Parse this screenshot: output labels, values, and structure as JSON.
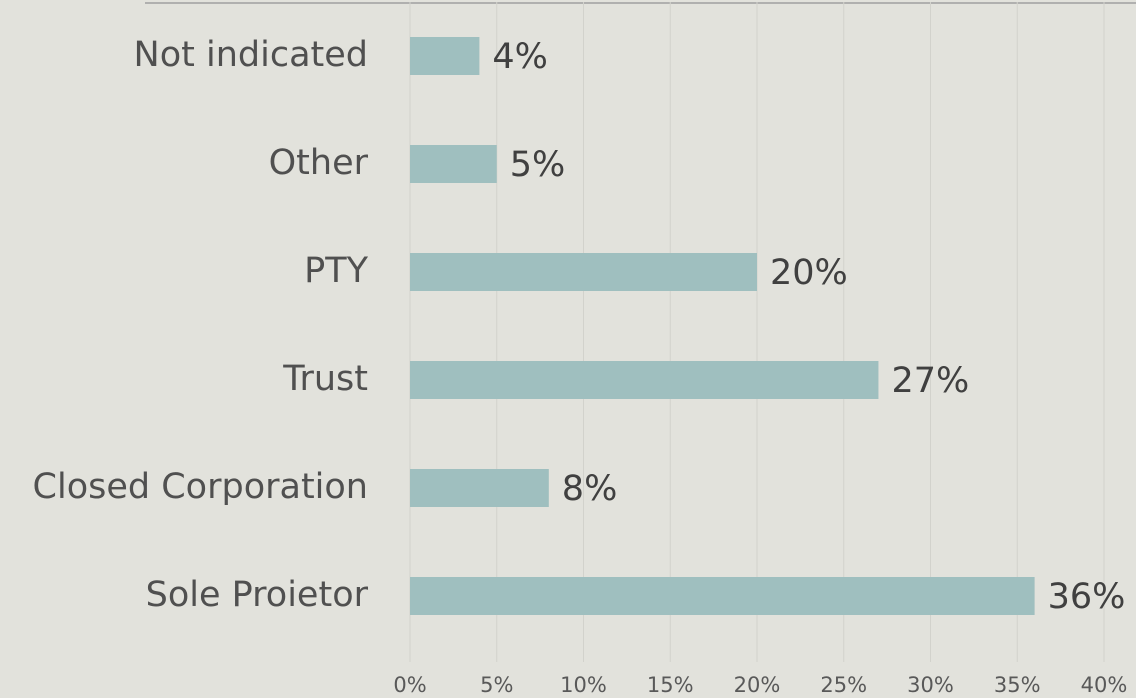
{
  "chart_data": {
    "type": "bar",
    "orientation": "horizontal",
    "categories": [
      "Not indicated",
      "Other",
      "PTY",
      "Trust",
      "Closed Corporation",
      "Sole Proietor"
    ],
    "values": [
      4,
      5,
      20,
      27,
      8,
      36
    ],
    "value_labels": [
      "4%",
      "5%",
      "20%",
      "27%",
      "8%",
      "36%"
    ],
    "color": "#9fbfbf",
    "xlim": [
      0,
      40
    ],
    "xticks": [
      {
        "value": 0,
        "label": "0%"
      },
      {
        "value": 5,
        "label": "5%"
      },
      {
        "value": 10,
        "label": "10%"
      },
      {
        "value": 15,
        "label": "15%"
      },
      {
        "value": 20,
        "label": "20%"
      },
      {
        "value": 25,
        "label": "25%"
      },
      {
        "value": 30,
        "label": "30%"
      },
      {
        "value": 35,
        "label": "35%"
      },
      {
        "value": 40,
        "label": "40%"
      }
    ],
    "grid": true
  }
}
